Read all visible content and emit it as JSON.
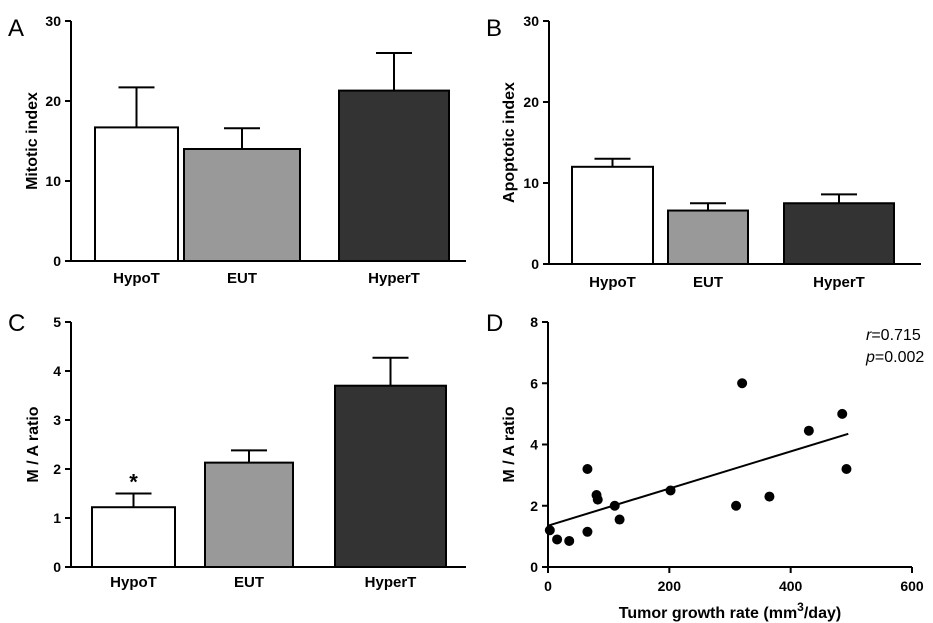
{
  "chart_data": [
    {
      "panel": "A",
      "type": "bar",
      "categories": [
        "HypoT",
        "EUT",
        "HyperT"
      ],
      "values": [
        16.7,
        14.0,
        21.3
      ],
      "errors": [
        5.0,
        2.6,
        4.7
      ],
      "colors": [
        "#ffffff",
        "#999999",
        "#333333"
      ],
      "ylabel": "Mitotic index",
      "xlabel": "",
      "ylim": [
        0,
        30
      ],
      "yticks": [
        0,
        10,
        20,
        30
      ],
      "annotations": []
    },
    {
      "panel": "B",
      "type": "bar",
      "categories": [
        "HypoT",
        "EUT",
        "HyperT"
      ],
      "values": [
        12.0,
        6.6,
        7.5
      ],
      "errors": [
        1.0,
        0.9,
        1.1
      ],
      "colors": [
        "#ffffff",
        "#999999",
        "#333333"
      ],
      "ylabel": "Apoptotic index",
      "xlabel": "",
      "ylim": [
        0,
        30
      ],
      "yticks": [
        0,
        10,
        20,
        30
      ],
      "annotations": []
    },
    {
      "panel": "C",
      "type": "bar",
      "categories": [
        "HypoT",
        "EUT",
        "HyperT"
      ],
      "values": [
        1.22,
        2.13,
        3.7
      ],
      "errors": [
        0.28,
        0.25,
        0.57
      ],
      "colors": [
        "#ffffff",
        "#999999",
        "#333333"
      ],
      "ylabel": "M / A ratio",
      "xlabel": "",
      "ylim": [
        0,
        5
      ],
      "yticks": [
        0,
        1,
        2,
        3,
        4,
        5
      ],
      "annotations": [
        {
          "category": "HypoT",
          "text": "*"
        }
      ]
    },
    {
      "panel": "D",
      "type": "scatter",
      "xlabel": "Tumor growth rate (mm",
      "xlabel_sup": "3",
      "xlabel_end": "/day)",
      "ylabel": "M / A ratio",
      "xlim": [
        0,
        600
      ],
      "ylim": [
        0,
        8
      ],
      "xticks": [
        0,
        200,
        400,
        600
      ],
      "yticks": [
        0,
        2,
        4,
        6,
        8
      ],
      "points": [
        {
          "x": 3,
          "y": 1.2
        },
        {
          "x": 15,
          "y": 0.9
        },
        {
          "x": 35,
          "y": 0.85
        },
        {
          "x": 65,
          "y": 3.2
        },
        {
          "x": 65,
          "y": 1.15
        },
        {
          "x": 80,
          "y": 2.35
        },
        {
          "x": 82,
          "y": 2.2
        },
        {
          "x": 110,
          "y": 2.0
        },
        {
          "x": 118,
          "y": 1.55
        },
        {
          "x": 202,
          "y": 2.5
        },
        {
          "x": 310,
          "y": 2.0
        },
        {
          "x": 320,
          "y": 6.0
        },
        {
          "x": 365,
          "y": 2.3
        },
        {
          "x": 430,
          "y": 4.45
        },
        {
          "x": 485,
          "y": 5.0
        },
        {
          "x": 492,
          "y": 3.2
        }
      ],
      "fit_line": [
        {
          "x": 0,
          "y": 1.35
        },
        {
          "x": 495,
          "y": 4.35
        }
      ],
      "stats": {
        "r_label": "r",
        "r_value": "=0.715",
        "p_label": "p",
        "p_value": "=0.002"
      }
    }
  ],
  "panel_letters": [
    "A",
    "B",
    "C",
    "D"
  ]
}
